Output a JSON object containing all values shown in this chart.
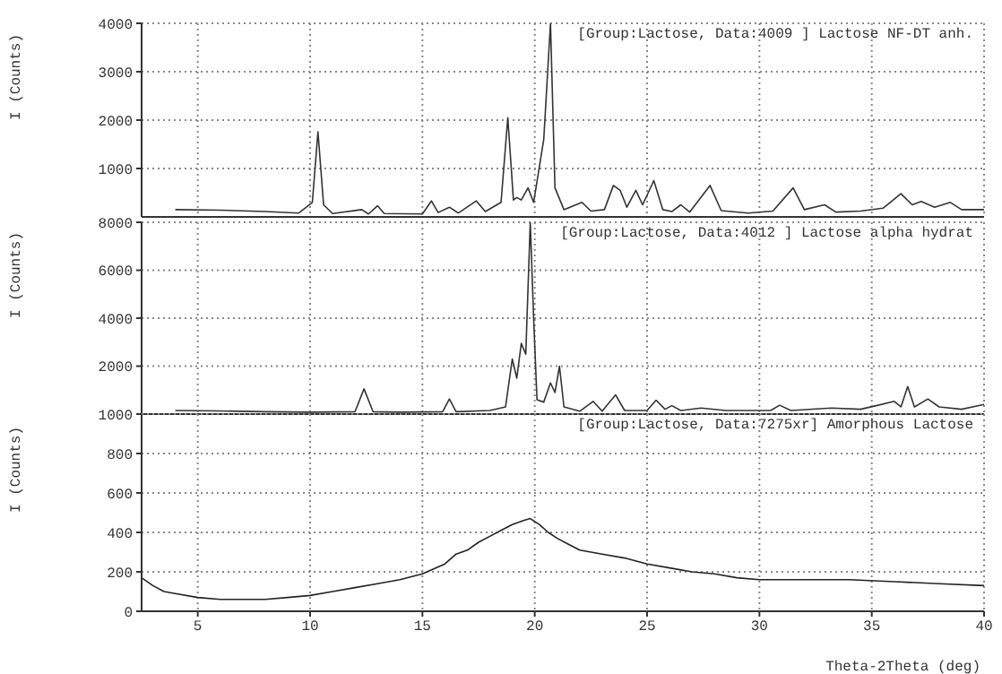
{
  "chart_data": [
    {
      "type": "line",
      "ylabel": "I (Counts)",
      "xlim": [
        2.5,
        40
      ],
      "xticks": [
        5,
        10,
        15,
        20,
        25,
        30,
        35,
        40
      ],
      "ylim": [
        0,
        4000
      ],
      "yticks": [
        1000,
        2000,
        3000,
        4000
      ],
      "grid": true,
      "legend": "top right",
      "tick_labels": "y",
      "x": [
        4.0,
        6,
        8,
        9.5,
        10.1,
        10.35,
        10.6,
        11,
        12.3,
        12.6,
        13.0,
        13.3,
        15.0,
        15.4,
        15.7,
        16.2,
        16.6,
        17.4,
        17.8,
        18.5,
        18.8,
        19.05,
        19.2,
        19.4,
        19.7,
        19.95,
        20.4,
        20.7,
        20.9,
        21.3,
        22.1,
        22.5,
        23.1,
        23.5,
        23.8,
        24.1,
        24.5,
        24.8,
        25.3,
        25.7,
        26.1,
        26.5,
        26.9,
        27.8,
        28.3,
        29.5,
        30.6,
        31.5,
        32.0,
        32.9,
        33.4,
        34.5,
        35.5,
        36.3,
        36.8,
        37.2,
        37.8,
        38.5,
        39.0,
        40.0
      ],
      "series": [
        {
          "name": "[Group:Lactose, Data:4009 ] Lactose NF-DT anh.",
          "color": "#333333",
          "values": [
            150,
            140,
            110,
            80,
            300,
            1760,
            250,
            70,
            150,
            60,
            230,
            70,
            60,
            330,
            90,
            200,
            80,
            330,
            110,
            300,
            2050,
            350,
            400,
            350,
            600,
            300,
            1600,
            4000,
            600,
            150,
            300,
            120,
            150,
            650,
            550,
            200,
            550,
            250,
            750,
            150,
            110,
            250,
            100,
            650,
            130,
            80,
            120,
            600,
            150,
            250,
            100,
            120,
            180,
            480,
            250,
            320,
            200,
            300,
            150,
            150
          ]
        }
      ]
    },
    {
      "type": "line",
      "ylabel": "I (Counts)",
      "xlim": [
        2.5,
        40
      ],
      "xticks": [
        5,
        10,
        15,
        20,
        25,
        30,
        35,
        40
      ],
      "ylim": [
        0,
        8000
      ],
      "yticks": [
        2000,
        4000,
        6000,
        8000
      ],
      "grid": true,
      "legend": "top right",
      "tick_labels": "y",
      "x": [
        4.0,
        6,
        8,
        10,
        12.0,
        12.4,
        12.8,
        14,
        15.9,
        16.2,
        16.5,
        18.0,
        18.7,
        19.0,
        19.2,
        19.4,
        19.6,
        19.8,
        19.95,
        20.1,
        20.4,
        20.7,
        20.9,
        21.1,
        21.3,
        22.0,
        22.6,
        23.0,
        23.6,
        24.0,
        25.0,
        25.4,
        25.8,
        26.1,
        26.5,
        27.4,
        28.5,
        30.5,
        30.9,
        31.4,
        33.2,
        34.5,
        35.2,
        36.0,
        36.3,
        36.6,
        36.9,
        37.5,
        38.0,
        39.0,
        40.0
      ],
      "series": [
        {
          "name": "[Group:Lactose, Data:4012 ] Lactose alpha hydrat",
          "color": "#333333",
          "values": [
            150,
            130,
            100,
            80,
            100,
            1050,
            100,
            80,
            100,
            630,
            100,
            150,
            300,
            2300,
            1500,
            2950,
            2500,
            8000,
            4000,
            600,
            500,
            1300,
            900,
            2000,
            300,
            120,
            530,
            120,
            800,
            150,
            150,
            580,
            200,
            350,
            150,
            250,
            150,
            150,
            370,
            150,
            250,
            200,
            350,
            530,
            300,
            1150,
            300,
            630,
            300,
            200,
            400
          ]
        }
      ]
    },
    {
      "type": "line",
      "xlabel": "Theta-2Theta (deg)",
      "ylabel": "I (Counts)",
      "xlim": [
        2.5,
        40
      ],
      "xticks": [
        5,
        10,
        15,
        20,
        25,
        30,
        35,
        40
      ],
      "ylim": [
        0,
        1000
      ],
      "yticks": [
        0,
        200,
        400,
        600,
        800,
        1000
      ],
      "grid": true,
      "legend": "top right",
      "x": [
        2.5,
        3,
        3.5,
        4,
        5,
        6,
        7,
        8,
        9,
        10,
        11,
        12,
        13,
        14,
        15,
        16,
        16.5,
        17,
        17.5,
        18,
        18.5,
        19,
        19.5,
        19.8,
        20.2,
        20.6,
        21,
        21.5,
        22,
        22.5,
        23,
        24,
        25,
        26,
        27,
        28,
        29,
        30,
        32,
        34,
        36,
        38,
        40
      ],
      "series": [
        {
          "name": "[Group:Lactose, Data:7275xr] Amorphous Lactose",
          "color": "#222222",
          "values": [
            170,
            130,
            100,
            90,
            70,
            60,
            60,
            60,
            70,
            80,
            100,
            120,
            140,
            160,
            190,
            240,
            290,
            310,
            350,
            380,
            410,
            440,
            460,
            470,
            440,
            400,
            370,
            340,
            310,
            300,
            290,
            270,
            240,
            220,
            200,
            190,
            170,
            160,
            160,
            160,
            150,
            140,
            130
          ]
        }
      ]
    }
  ]
}
